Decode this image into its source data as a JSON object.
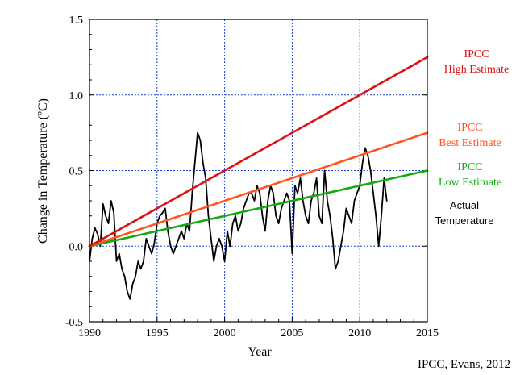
{
  "chart_data": {
    "type": "line",
    "xlabel": "Year",
    "ylabel": "Change in Temperature (ºC)",
    "xlim": [
      1990,
      2015
    ],
    "ylim": [
      -0.5,
      1.5
    ],
    "x_ticks": [
      "1990",
      "1995",
      "2000",
      "2005",
      "2010",
      "2015"
    ],
    "y_ticks": [
      "-0.5",
      "0.0",
      "0.5",
      "1.0",
      "1.5"
    ],
    "grid": true,
    "credit": "IPCC, Evans, 2012",
    "series": [
      {
        "id": "high",
        "label_lines": [
          "IPCC",
          "High Estimate"
        ],
        "color": "#dd1111",
        "label_font": "serif",
        "x": [
          1990,
          2015
        ],
        "y": [
          0.0,
          1.25
        ]
      },
      {
        "id": "best",
        "label_lines": [
          "IPCC",
          "Best Estimate"
        ],
        "color": "#ff5522",
        "label_font": "serif",
        "x": [
          1990,
          2015
        ],
        "y": [
          0.0,
          0.75
        ]
      },
      {
        "id": "low",
        "label_lines": [
          "IPCC",
          "Low Estimate"
        ],
        "color": "#11aa11",
        "label_font": "serif",
        "x": [
          1990,
          2015
        ],
        "y": [
          0.0,
          0.5
        ]
      },
      {
        "id": "actual",
        "label_lines": [
          "Actual",
          "Temperature"
        ],
        "color": "#000000",
        "label_font": "sans",
        "x": [
          1990.0,
          1990.2,
          1990.4,
          1990.6,
          1990.8,
          1991.0,
          1991.2,
          1991.4,
          1991.6,
          1991.8,
          1992.0,
          1992.2,
          1992.4,
          1992.6,
          1992.8,
          1993.0,
          1993.2,
          1993.4,
          1993.6,
          1993.8,
          1994.0,
          1994.2,
          1994.4,
          1994.6,
          1994.8,
          1995.0,
          1995.2,
          1995.4,
          1995.6,
          1995.8,
          1996.0,
          1996.2,
          1996.4,
          1996.6,
          1996.8,
          1997.0,
          1997.2,
          1997.4,
          1997.6,
          1997.8,
          1998.0,
          1998.2,
          1998.4,
          1998.6,
          1998.8,
          1999.0,
          1999.2,
          1999.4,
          1999.6,
          1999.8,
          2000.0,
          2000.2,
          2000.4,
          2000.6,
          2000.8,
          2001.0,
          2001.2,
          2001.4,
          2001.6,
          2001.8,
          2002.0,
          2002.2,
          2002.4,
          2002.6,
          2002.8,
          2003.0,
          2003.2,
          2003.4,
          2003.6,
          2003.8,
          2004.0,
          2004.2,
          2004.4,
          2004.6,
          2004.8,
          2005.0,
          2005.2,
          2005.4,
          2005.6,
          2005.8,
          2006.0,
          2006.2,
          2006.4,
          2006.6,
          2006.8,
          2007.0,
          2007.2,
          2007.4,
          2007.6,
          2007.8,
          2008.0,
          2008.2,
          2008.4,
          2008.6,
          2008.8,
          2009.0,
          2009.2,
          2009.4,
          2009.6,
          2009.8,
          2010.0,
          2010.2,
          2010.4,
          2010.6,
          2010.8,
          2011.0,
          2011.2,
          2011.4,
          2011.6,
          2011.8,
          2012.0
        ],
        "y": [
          -0.1,
          0.05,
          0.12,
          0.08,
          0.0,
          0.28,
          0.2,
          0.15,
          0.3,
          0.22,
          -0.1,
          -0.05,
          -0.15,
          -0.2,
          -0.3,
          -0.35,
          -0.25,
          -0.2,
          -0.1,
          -0.15,
          -0.1,
          0.05,
          0.0,
          -0.05,
          0.02,
          0.15,
          0.2,
          0.22,
          0.25,
          0.1,
          0.0,
          -0.05,
          0.0,
          0.05,
          0.1,
          0.05,
          0.15,
          0.1,
          0.35,
          0.55,
          0.75,
          0.7,
          0.55,
          0.45,
          0.2,
          0.05,
          -0.1,
          0.0,
          0.05,
          0.0,
          -0.1,
          0.1,
          0.0,
          0.15,
          0.2,
          0.1,
          0.15,
          0.25,
          0.3,
          0.35,
          0.35,
          0.3,
          0.4,
          0.35,
          0.2,
          0.1,
          0.3,
          0.4,
          0.35,
          0.2,
          0.15,
          0.25,
          0.3,
          0.35,
          0.3,
          -0.05,
          0.4,
          0.35,
          0.45,
          0.3,
          0.2,
          0.15,
          0.3,
          0.35,
          0.45,
          0.2,
          0.15,
          0.5,
          0.3,
          0.2,
          0.05,
          -0.15,
          -0.1,
          0.0,
          0.1,
          0.25,
          0.2,
          0.15,
          0.3,
          0.35,
          0.4,
          0.55,
          0.65,
          0.6,
          0.5,
          0.35,
          0.2,
          0.0,
          0.2,
          0.45,
          0.3
        ]
      }
    ]
  }
}
